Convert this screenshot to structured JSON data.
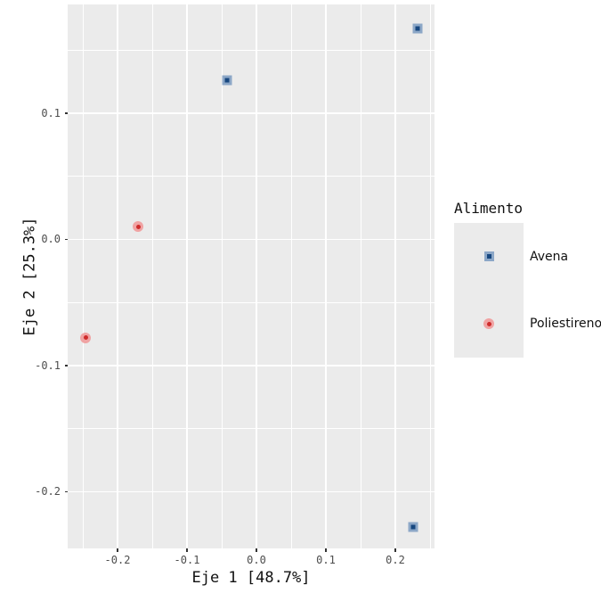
{
  "chart_data": {
    "type": "scatter",
    "title": "",
    "xlabel": "Eje 1 [48.7%]",
    "ylabel": "Eje 2 [25.3%]",
    "xlim": [
      -0.2718,
      0.2564
    ],
    "ylim": [
      -0.245,
      0.1863
    ],
    "grid": true,
    "panel_background": "#EBEBEB",
    "grid_color": "#FFFFFF",
    "tick_mark_color": "#333333",
    "tick_label_color": "#4D4D4D",
    "x_ticks": [
      {
        "value": -0.2,
        "label": "-0.2"
      },
      {
        "value": -0.1,
        "label": "-0.1"
      },
      {
        "value": 0.0,
        "label": "0.0"
      },
      {
        "value": 0.1,
        "label": "0.1"
      },
      {
        "value": 0.2,
        "label": "0.2"
      }
    ],
    "y_ticks": [
      {
        "value": 0.1,
        "label": "0.1"
      },
      {
        "value": 0.0,
        "label": "0.0"
      },
      {
        "value": -0.1,
        "label": "-0.1"
      },
      {
        "value": -0.2,
        "label": "-0.2"
      }
    ],
    "x_minor": [
      -0.25,
      -0.15,
      -0.05,
      0.05,
      0.15,
      0.25
    ],
    "y_minor": [
      0.15,
      0.05,
      -0.05,
      -0.15
    ],
    "legend_position": "right",
    "legend_title": "Alimento",
    "series": [
      {
        "name": "Avena",
        "marker": "square",
        "fill": "#8CA7C7",
        "core": "#17477F",
        "points": [
          {
            "x": 0.232,
            "y": 0.167
          },
          {
            "x": -0.042,
            "y": 0.126
          },
          {
            "x": 0.225,
            "y": -0.228
          }
        ]
      },
      {
        "name": "Poliestireno",
        "marker": "circle",
        "fill": "#F0A3A3",
        "core": "#CE2B2B",
        "points": [
          {
            "x": -0.17,
            "y": 0.01
          },
          {
            "x": -0.246,
            "y": -0.078
          }
        ]
      }
    ]
  }
}
